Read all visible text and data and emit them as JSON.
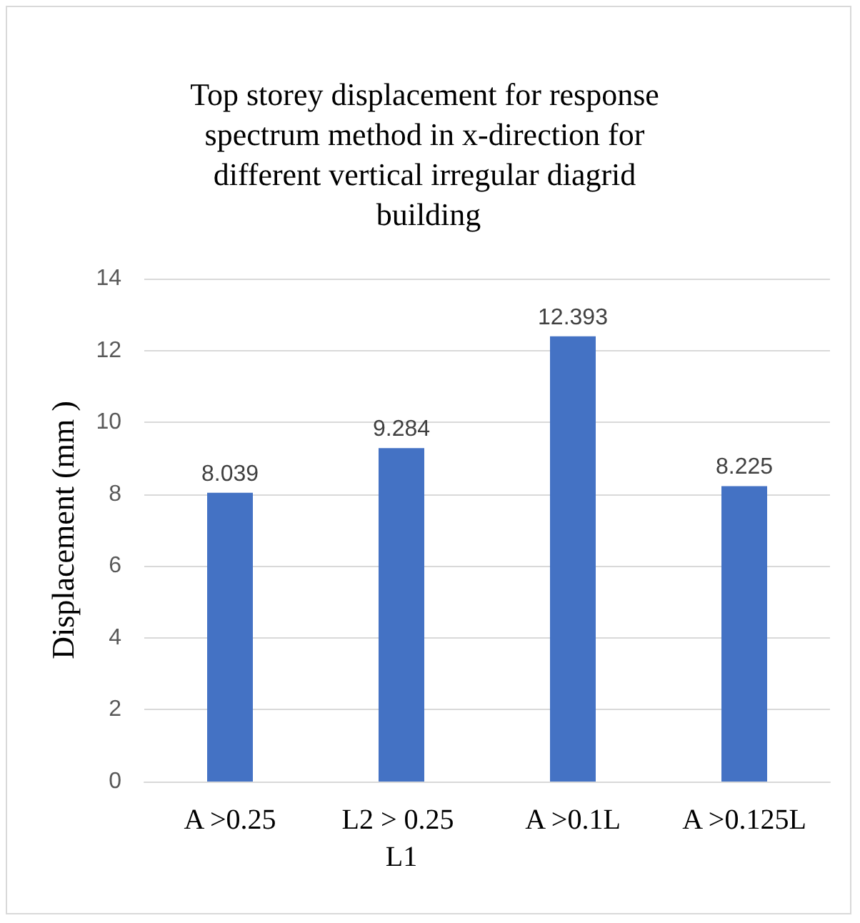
{
  "chart_data": {
    "type": "bar",
    "title": "Top storey displacement for response spectrum method in x-direction for different vertical irregular diagrid building",
    "ylabel": "Displacement (mm )",
    "categories": [
      "A >0.25",
      "L2 > 0.25 L1",
      "A >0.1L",
      "A >0.125L"
    ],
    "values": [
      8.039,
      9.284,
      12.393,
      8.225
    ],
    "color": "#4472c4",
    "ylim": [
      0,
      14
    ],
    "yticks": [
      0,
      2,
      4,
      6,
      8,
      10,
      12,
      14
    ],
    "grid": "y",
    "data_labels": true,
    "legend": false
  }
}
